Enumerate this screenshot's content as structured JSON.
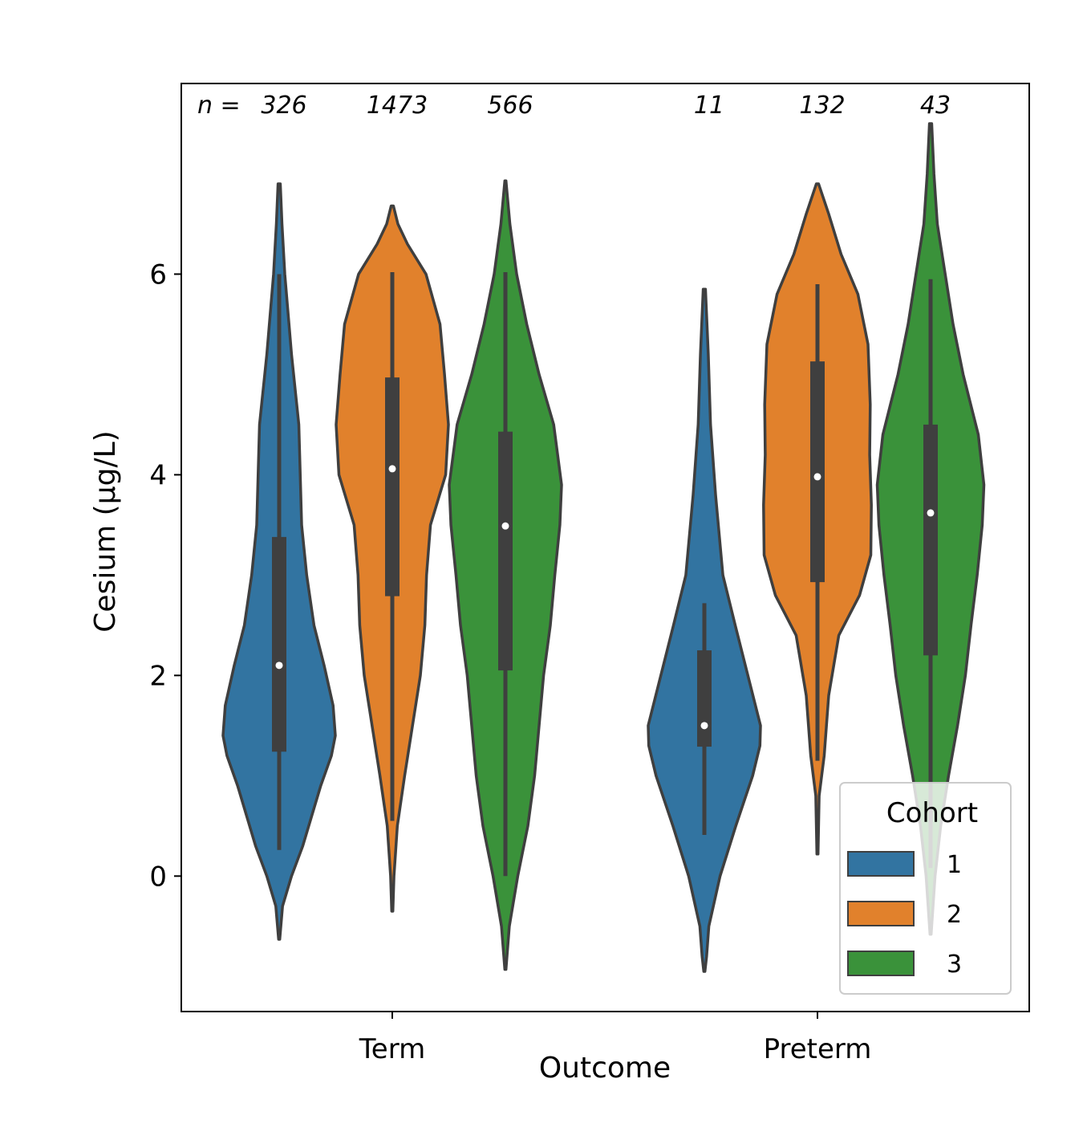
{
  "chart_data": {
    "type": "violin",
    "xlabel": "Outcome",
    "ylabel": "Cesium (µg/L)",
    "categories": [
      "Term",
      "Preterm"
    ],
    "ylim": [
      -1.35,
      7.9
    ],
    "yticks": [
      0,
      2,
      4,
      6
    ],
    "n_prefix": "n =",
    "legend": {
      "title": "Cohort",
      "position": "lower-right"
    },
    "series": [
      {
        "name": "1",
        "color": "#3274a1",
        "n": [
          "326",
          "11"
        ],
        "box": [
          {
            "whisker_low": 0.26,
            "q1": 1.24,
            "median": 2.1,
            "q3": 3.38,
            "whisker_high": 6.0
          },
          {
            "whisker_low": 0.41,
            "q1": 1.29,
            "median": 1.5,
            "q3": 2.25,
            "whisker_high": 2.72
          }
        ],
        "density": [
          [
            [
              -0.63,
              0.01
            ],
            [
              -0.3,
              0.06
            ],
            [
              0,
              0.22
            ],
            [
              0.3,
              0.42
            ],
            [
              0.6,
              0.58
            ],
            [
              0.9,
              0.74
            ],
            [
              1.2,
              0.93
            ],
            [
              1.4,
              1.0
            ],
            [
              1.7,
              0.96
            ],
            [
              2.1,
              0.8
            ],
            [
              2.5,
              0.62
            ],
            [
              3.0,
              0.49
            ],
            [
              3.5,
              0.4
            ],
            [
              4.5,
              0.35
            ],
            [
              5.2,
              0.22
            ],
            [
              6.0,
              0.1
            ],
            [
              6.5,
              0.05
            ],
            [
              6.9,
              0.02
            ]
          ],
          [
            [
              -0.95,
              0.01
            ],
            [
              -0.8,
              0.04
            ],
            [
              -0.5,
              0.08
            ],
            [
              0,
              0.28
            ],
            [
              0.5,
              0.56
            ],
            [
              1.0,
              0.86
            ],
            [
              1.3,
              0.99
            ],
            [
              1.5,
              1.0
            ],
            [
              1.9,
              0.82
            ],
            [
              2.5,
              0.55
            ],
            [
              3.0,
              0.33
            ],
            [
              3.8,
              0.2
            ],
            [
              4.5,
              0.11
            ],
            [
              5.2,
              0.07
            ],
            [
              5.85,
              0.02
            ]
          ]
        ]
      },
      {
        "name": "2",
        "color": "#e1812c",
        "n": [
          "1473",
          "132"
        ],
        "box": [
          {
            "whisker_low": 0.55,
            "q1": 2.79,
            "median": 4.06,
            "q3": 4.97,
            "whisker_high": 6.02
          },
          {
            "whisker_low": 1.15,
            "q1": 2.93,
            "median": 3.98,
            "q3": 5.13,
            "whisker_high": 5.9
          }
        ],
        "density": [
          [
            [
              -0.35,
              0.01
            ],
            [
              0,
              0.03
            ],
            [
              0.5,
              0.09
            ],
            [
              1.0,
              0.22
            ],
            [
              1.5,
              0.36
            ],
            [
              2.0,
              0.5
            ],
            [
              2.5,
              0.58
            ],
            [
              3.0,
              0.61
            ],
            [
              3.5,
              0.68
            ],
            [
              4.0,
              0.95
            ],
            [
              4.5,
              1.0
            ],
            [
              5.0,
              0.93
            ],
            [
              5.5,
              0.85
            ],
            [
              6.0,
              0.6
            ],
            [
              6.3,
              0.27
            ],
            [
              6.5,
              0.1
            ],
            [
              6.68,
              0.02
            ]
          ],
          [
            [
              0.22,
              0.01
            ],
            [
              0.8,
              0.03
            ],
            [
              1.2,
              0.12
            ],
            [
              1.8,
              0.2
            ],
            [
              2.4,
              0.38
            ],
            [
              2.8,
              0.75
            ],
            [
              3.2,
              0.95
            ],
            [
              3.7,
              0.96
            ],
            [
              4.2,
              0.93
            ],
            [
              4.7,
              0.94
            ],
            [
              5.3,
              0.9
            ],
            [
              5.8,
              0.72
            ],
            [
              6.2,
              0.42
            ],
            [
              6.6,
              0.2
            ],
            [
              6.9,
              0.02
            ]
          ]
        ]
      },
      {
        "name": "3",
        "color": "#3a923a",
        "n": [
          "566",
          "43"
        ],
        "box": [
          {
            "whisker_low": 0.0,
            "q1": 2.05,
            "median": 3.49,
            "q3": 4.43,
            "whisker_high": 6.02
          },
          {
            "whisker_low": 0.08,
            "q1": 2.2,
            "median": 3.62,
            "q3": 4.5,
            "whisker_high": 5.95
          }
        ],
        "density": [
          [
            [
              -0.93,
              0.01
            ],
            [
              -0.5,
              0.07
            ],
            [
              0,
              0.22
            ],
            [
              0.5,
              0.4
            ],
            [
              1.0,
              0.52
            ],
            [
              1.5,
              0.6
            ],
            [
              2.0,
              0.68
            ],
            [
              2.5,
              0.8
            ],
            [
              3.0,
              0.88
            ],
            [
              3.5,
              0.97
            ],
            [
              3.9,
              1.0
            ],
            [
              4.5,
              0.86
            ],
            [
              5.0,
              0.6
            ],
            [
              5.5,
              0.38
            ],
            [
              6.0,
              0.2
            ],
            [
              6.5,
              0.08
            ],
            [
              6.93,
              0.01
            ]
          ],
          [
            [
              -0.58,
              0.01
            ],
            [
              0,
              0.08
            ],
            [
              0.5,
              0.18
            ],
            [
              1.0,
              0.32
            ],
            [
              1.5,
              0.48
            ],
            [
              2.0,
              0.62
            ],
            [
              2.5,
              0.72
            ],
            [
              3.0,
              0.83
            ],
            [
              3.5,
              0.92
            ],
            [
              3.9,
              0.95
            ],
            [
              4.4,
              0.85
            ],
            [
              5.0,
              0.58
            ],
            [
              5.5,
              0.4
            ],
            [
              6.0,
              0.26
            ],
            [
              6.5,
              0.12
            ],
            [
              7.0,
              0.06
            ],
            [
              7.5,
              0.02
            ]
          ]
        ]
      }
    ]
  }
}
